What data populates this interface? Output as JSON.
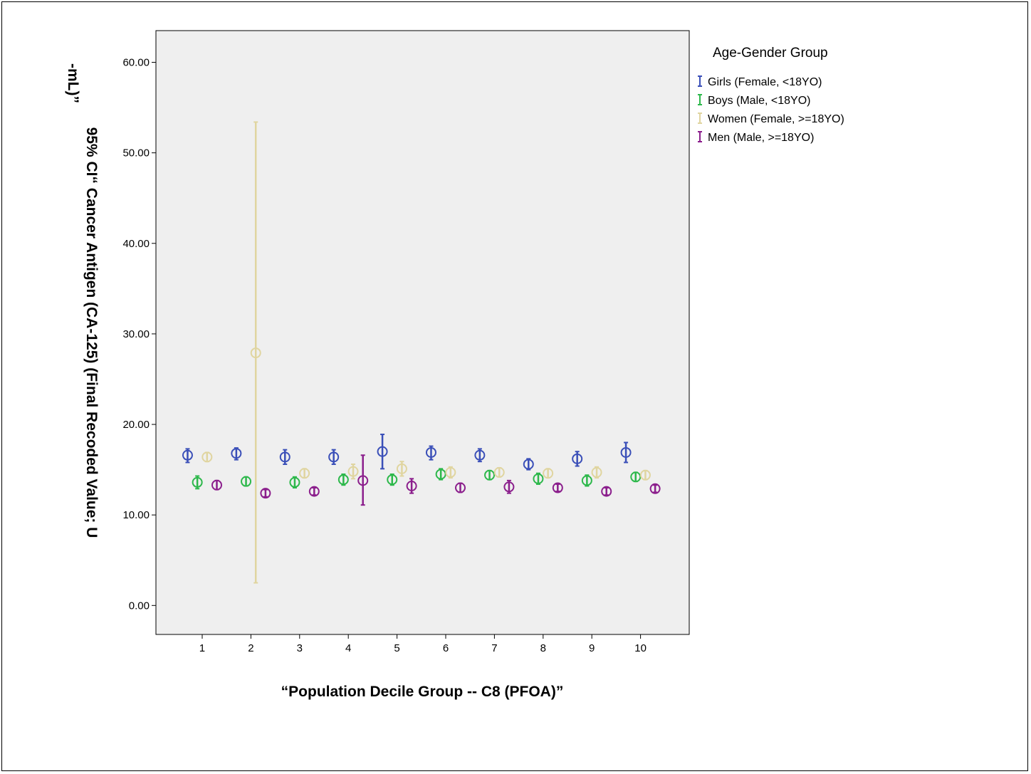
{
  "chart_data": {
    "type": "scatter",
    "subtype": "error-bar (95% CI of mean)",
    "xlabel": "“Population Decile Group --  C8 (PFOA)”",
    "ylabel_line1": "95% CI“ Cancer Antigen (CA-125) (Final Recoded Value; U",
    "ylabel_line2": "-mL)”",
    "x_ticks": [
      "1",
      "2",
      "3",
      "4",
      "5",
      "6",
      "7",
      "8",
      "9",
      "10"
    ],
    "y_ticks": [
      "0.00",
      "10.00",
      "20.00",
      "30.00",
      "40.00",
      "50.00",
      "60.00"
    ],
    "ylim": [
      -3.2,
      63.5
    ],
    "xlim": [
      0.05,
      11.0
    ],
    "grid": false,
    "plot_background": "#efefef",
    "legend": {
      "title": "Age-Gender Group",
      "placement": "right"
    },
    "series": [
      {
        "name": "Girls (Female, <18YO)",
        "color": "#3a4fb8",
        "x_offset": -0.3,
        "mean": [
          16.6,
          16.8,
          16.4,
          16.4,
          17.0,
          16.9,
          16.6,
          15.6,
          16.2,
          16.9
        ],
        "lower": [
          15.8,
          16.1,
          15.6,
          15.6,
          15.1,
          16.1,
          15.9,
          15.0,
          15.4,
          15.8
        ],
        "upper": [
          17.3,
          17.4,
          17.2,
          17.2,
          18.9,
          17.6,
          17.3,
          16.2,
          17.0,
          18.0
        ]
      },
      {
        "name": "Boys (Male, <18YO)",
        "color": "#2db84b",
        "x_offset": -0.1,
        "mean": [
          13.6,
          13.7,
          13.6,
          13.9,
          13.9,
          14.5,
          14.4,
          14.0,
          13.8,
          14.2
        ],
        "lower": [
          12.9,
          13.2,
          13.0,
          13.3,
          13.3,
          13.9,
          13.9,
          13.4,
          13.2,
          13.7
        ],
        "upper": [
          14.3,
          14.2,
          14.2,
          14.5,
          14.5,
          15.1,
          14.9,
          14.6,
          14.4,
          14.7
        ]
      },
      {
        "name": "Women (Female, >=18YO)",
        "color": "#e0d5a0",
        "x_offset": 0.1,
        "mean": [
          16.4,
          27.9,
          14.6,
          14.8,
          15.1,
          14.7,
          14.7,
          14.6,
          14.7,
          14.4
        ],
        "lower": [
          15.9,
          2.5,
          14.1,
          14.0,
          14.3,
          14.1,
          14.2,
          14.1,
          14.1,
          13.9
        ],
        "upper": [
          16.9,
          53.4,
          15.1,
          15.6,
          15.9,
          15.3,
          15.2,
          15.1,
          15.3,
          14.9
        ]
      },
      {
        "name": "Men (Male, >=18YO)",
        "color": "#8b1e8c",
        "x_offset": 0.3,
        "mean": [
          13.3,
          12.4,
          12.6,
          13.8,
          13.2,
          13.0,
          13.1,
          13.0,
          12.6,
          12.9
        ],
        "lower": [
          12.8,
          12.0,
          12.2,
          11.1,
          12.4,
          12.5,
          12.4,
          12.6,
          12.2,
          12.5
        ],
        "upper": [
          13.8,
          12.8,
          13.0,
          16.6,
          14.0,
          13.5,
          13.8,
          13.4,
          13.0,
          13.3
        ]
      }
    ]
  }
}
